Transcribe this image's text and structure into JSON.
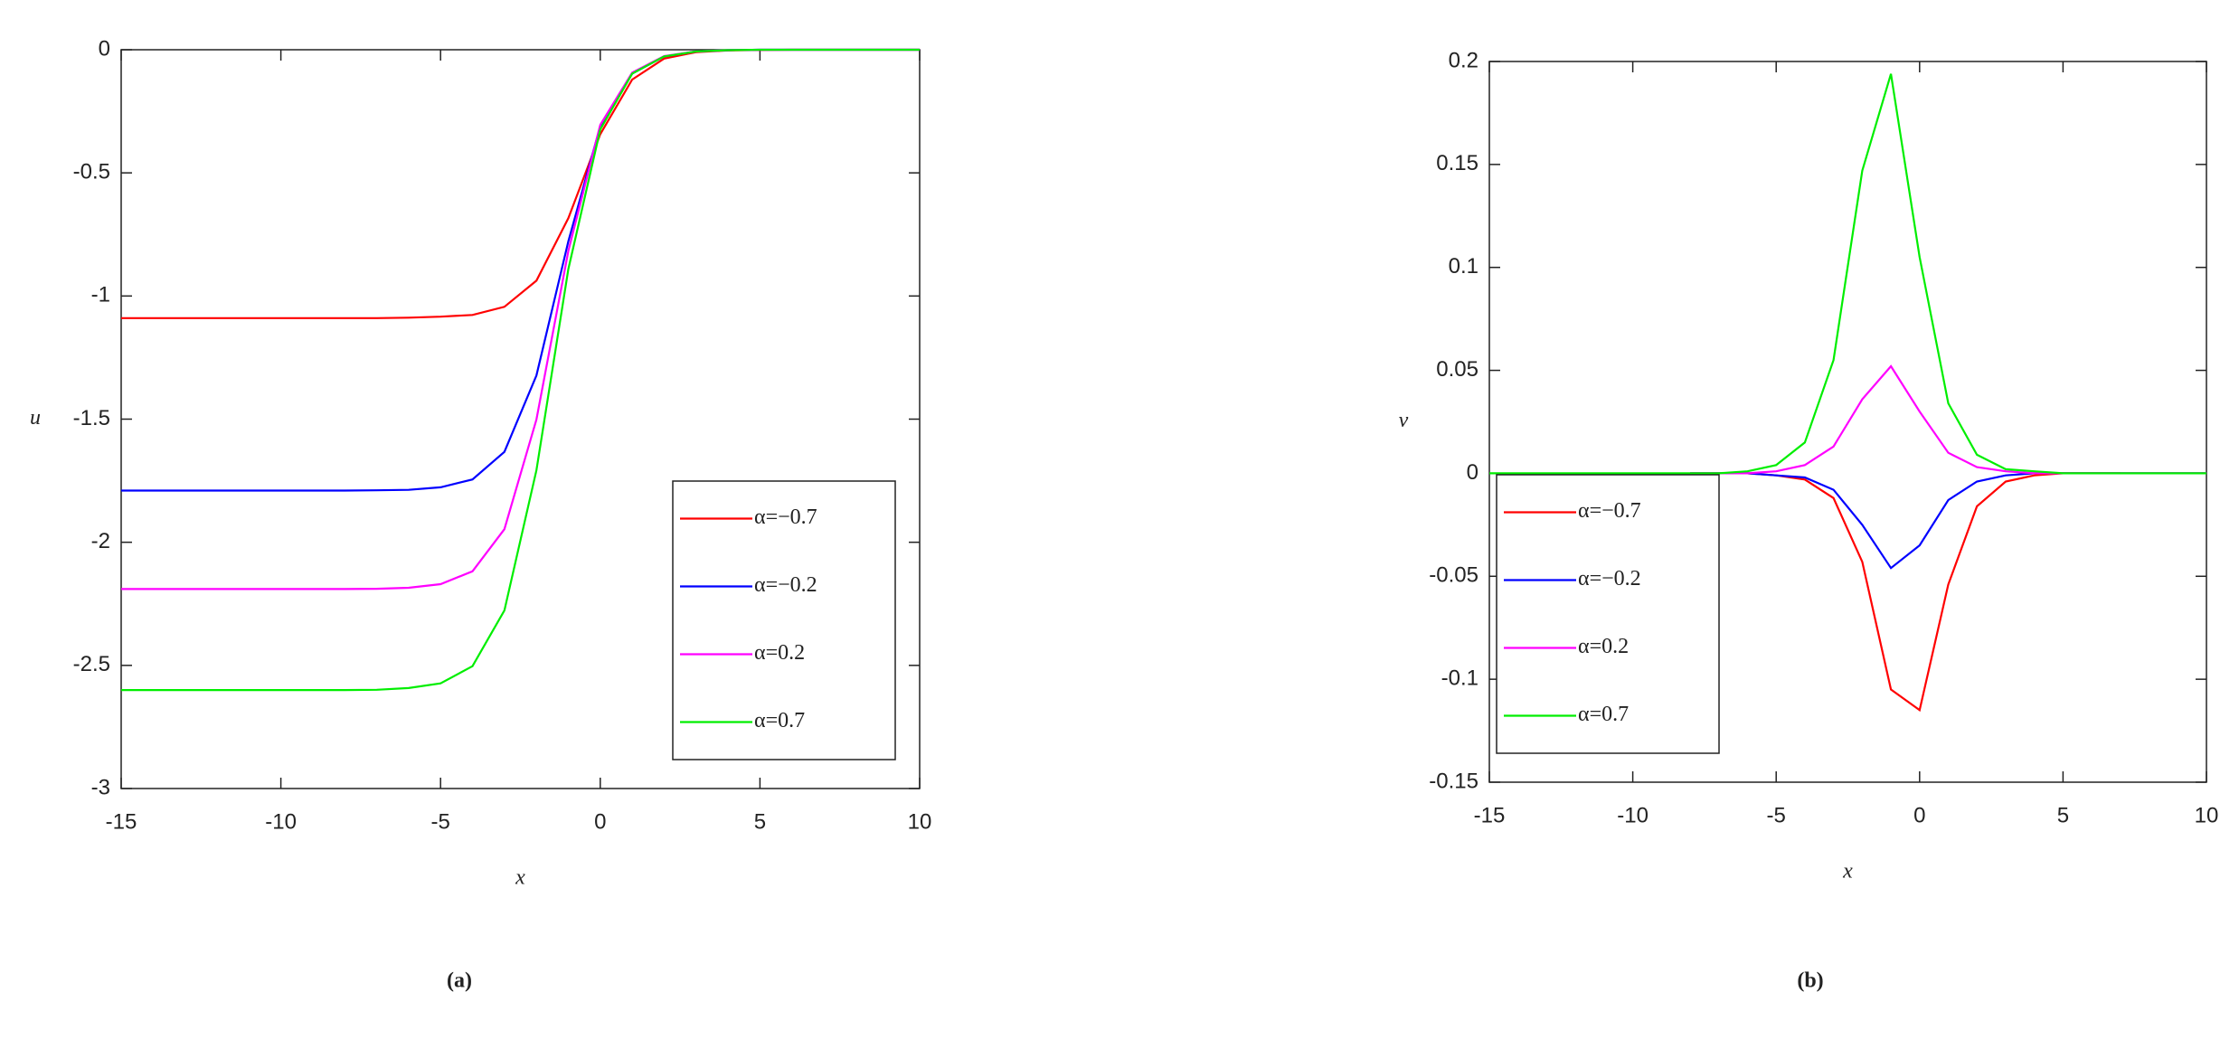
{
  "chart_data": [
    {
      "type": "line",
      "caption": "(a)",
      "xlabel": "x",
      "ylabel": "u",
      "x": [
        -15,
        -14,
        -13,
        -12,
        -11,
        -10,
        -9,
        -8,
        -7,
        -6,
        -5,
        -4,
        -3,
        -2,
        -1,
        0,
        1,
        2,
        3,
        4,
        5,
        6,
        7,
        8,
        9,
        10
      ],
      "series": [
        {
          "name": "α=−0.7",
          "color": "#ff0000",
          "values": [
            -1.09,
            -1.09,
            -1.09,
            -1.09,
            -1.09,
            -1.09,
            -1.09,
            -1.09,
            -1.09,
            -1.088,
            -1.084,
            -1.077,
            -1.044,
            -0.938,
            -0.684,
            -0.343,
            -0.121,
            -0.036,
            -0.01,
            -0.003,
            -0.001,
            0,
            0,
            0,
            0,
            0
          ]
        },
        {
          "name": "α=−0.2",
          "color": "#0000ff",
          "values": [
            -1.79,
            -1.79,
            -1.79,
            -1.79,
            -1.79,
            -1.79,
            -1.79,
            -1.79,
            -1.789,
            -1.787,
            -1.777,
            -1.745,
            -1.633,
            -1.323,
            -0.778,
            -0.311,
            -0.097,
            -0.027,
            -0.007,
            -0.002,
            0,
            0,
            0,
            0,
            0,
            0
          ]
        },
        {
          "name": "α=0.2",
          "color": "#ff00ff",
          "values": [
            -2.19,
            -2.19,
            -2.19,
            -2.19,
            -2.19,
            -2.19,
            -2.19,
            -2.19,
            -2.189,
            -2.185,
            -2.17,
            -2.118,
            -1.947,
            -1.502,
            -0.817,
            -0.305,
            -0.093,
            -0.026,
            -0.007,
            -0.002,
            0,
            0,
            0,
            0,
            0,
            0
          ]
        },
        {
          "name": "α=0.7",
          "color": "#00ee00",
          "values": [
            -2.6,
            -2.6,
            -2.6,
            -2.6,
            -2.6,
            -2.6,
            -2.6,
            -2.6,
            -2.599,
            -2.592,
            -2.573,
            -2.503,
            -2.277,
            -1.708,
            -0.891,
            -0.324,
            -0.097,
            -0.027,
            -0.007,
            -0.002,
            0,
            0,
            0,
            0,
            0,
            0
          ]
        }
      ],
      "xlim": [
        -15,
        10
      ],
      "xticks": [
        -15,
        -10,
        -5,
        0,
        5,
        10
      ],
      "ylim": [
        -3,
        0
      ],
      "yticks": [
        0,
        -0.5,
        -1,
        -1.5,
        -2,
        -2.5,
        -3
      ],
      "legend": "lower right"
    },
    {
      "type": "line",
      "caption": "(b)",
      "xlabel": "x",
      "ylabel": "v",
      "x": [
        -15,
        -14,
        -13,
        -12,
        -11,
        -10,
        -9,
        -8,
        -7,
        -6,
        -5,
        -4,
        -3,
        -2,
        -1,
        0,
        1,
        2,
        3,
        4,
        5,
        6,
        7,
        8,
        9,
        10
      ],
      "series": [
        {
          "name": "α=−0.7",
          "color": "#ff0000",
          "values": [
            null,
            null,
            null,
            null,
            null,
            null,
            null,
            0,
            0,
            0,
            -0.001,
            -0.003,
            -0.012,
            -0.043,
            -0.105,
            -0.115,
            -0.054,
            -0.016,
            -0.004,
            -0.001,
            0,
            0,
            0,
            null,
            null,
            null
          ]
        },
        {
          "name": "α=−0.2",
          "color": "#0000ff",
          "values": [
            null,
            null,
            null,
            null,
            null,
            null,
            null,
            0,
            0,
            0,
            -0.001,
            -0.002,
            -0.008,
            -0.025,
            -0.046,
            -0.035,
            -0.013,
            -0.004,
            -0.001,
            0,
            0,
            0,
            0,
            0,
            0,
            0
          ]
        },
        {
          "name": "α=0.2",
          "color": "#ff00ff",
          "values": [
            null,
            null,
            null,
            null,
            null,
            null,
            null,
            0,
            0,
            0,
            0.001,
            0.004,
            0.013,
            0.036,
            0.052,
            0.03,
            0.01,
            0.003,
            0.001,
            0,
            0,
            0,
            0,
            0,
            0,
            0
          ]
        },
        {
          "name": "α=0.7",
          "color": "#00ee00",
          "values": [
            0,
            0,
            0,
            0,
            0,
            0,
            0,
            0,
            0,
            0.001,
            0.004,
            0.015,
            0.055,
            0.147,
            0.194,
            0.105,
            0.034,
            0.009,
            0.002,
            0.001,
            0,
            0,
            0,
            0,
            0,
            0
          ]
        }
      ],
      "xlim": [
        -15,
        10
      ],
      "xticks": [
        -15,
        -10,
        -5,
        0,
        5,
        10
      ],
      "ylim": [
        -0.15,
        0.2
      ],
      "yticks": [
        0.2,
        0.15,
        0.1,
        0.05,
        0,
        -0.05,
        -0.1,
        -0.15
      ],
      "legend": "lower left"
    }
  ]
}
